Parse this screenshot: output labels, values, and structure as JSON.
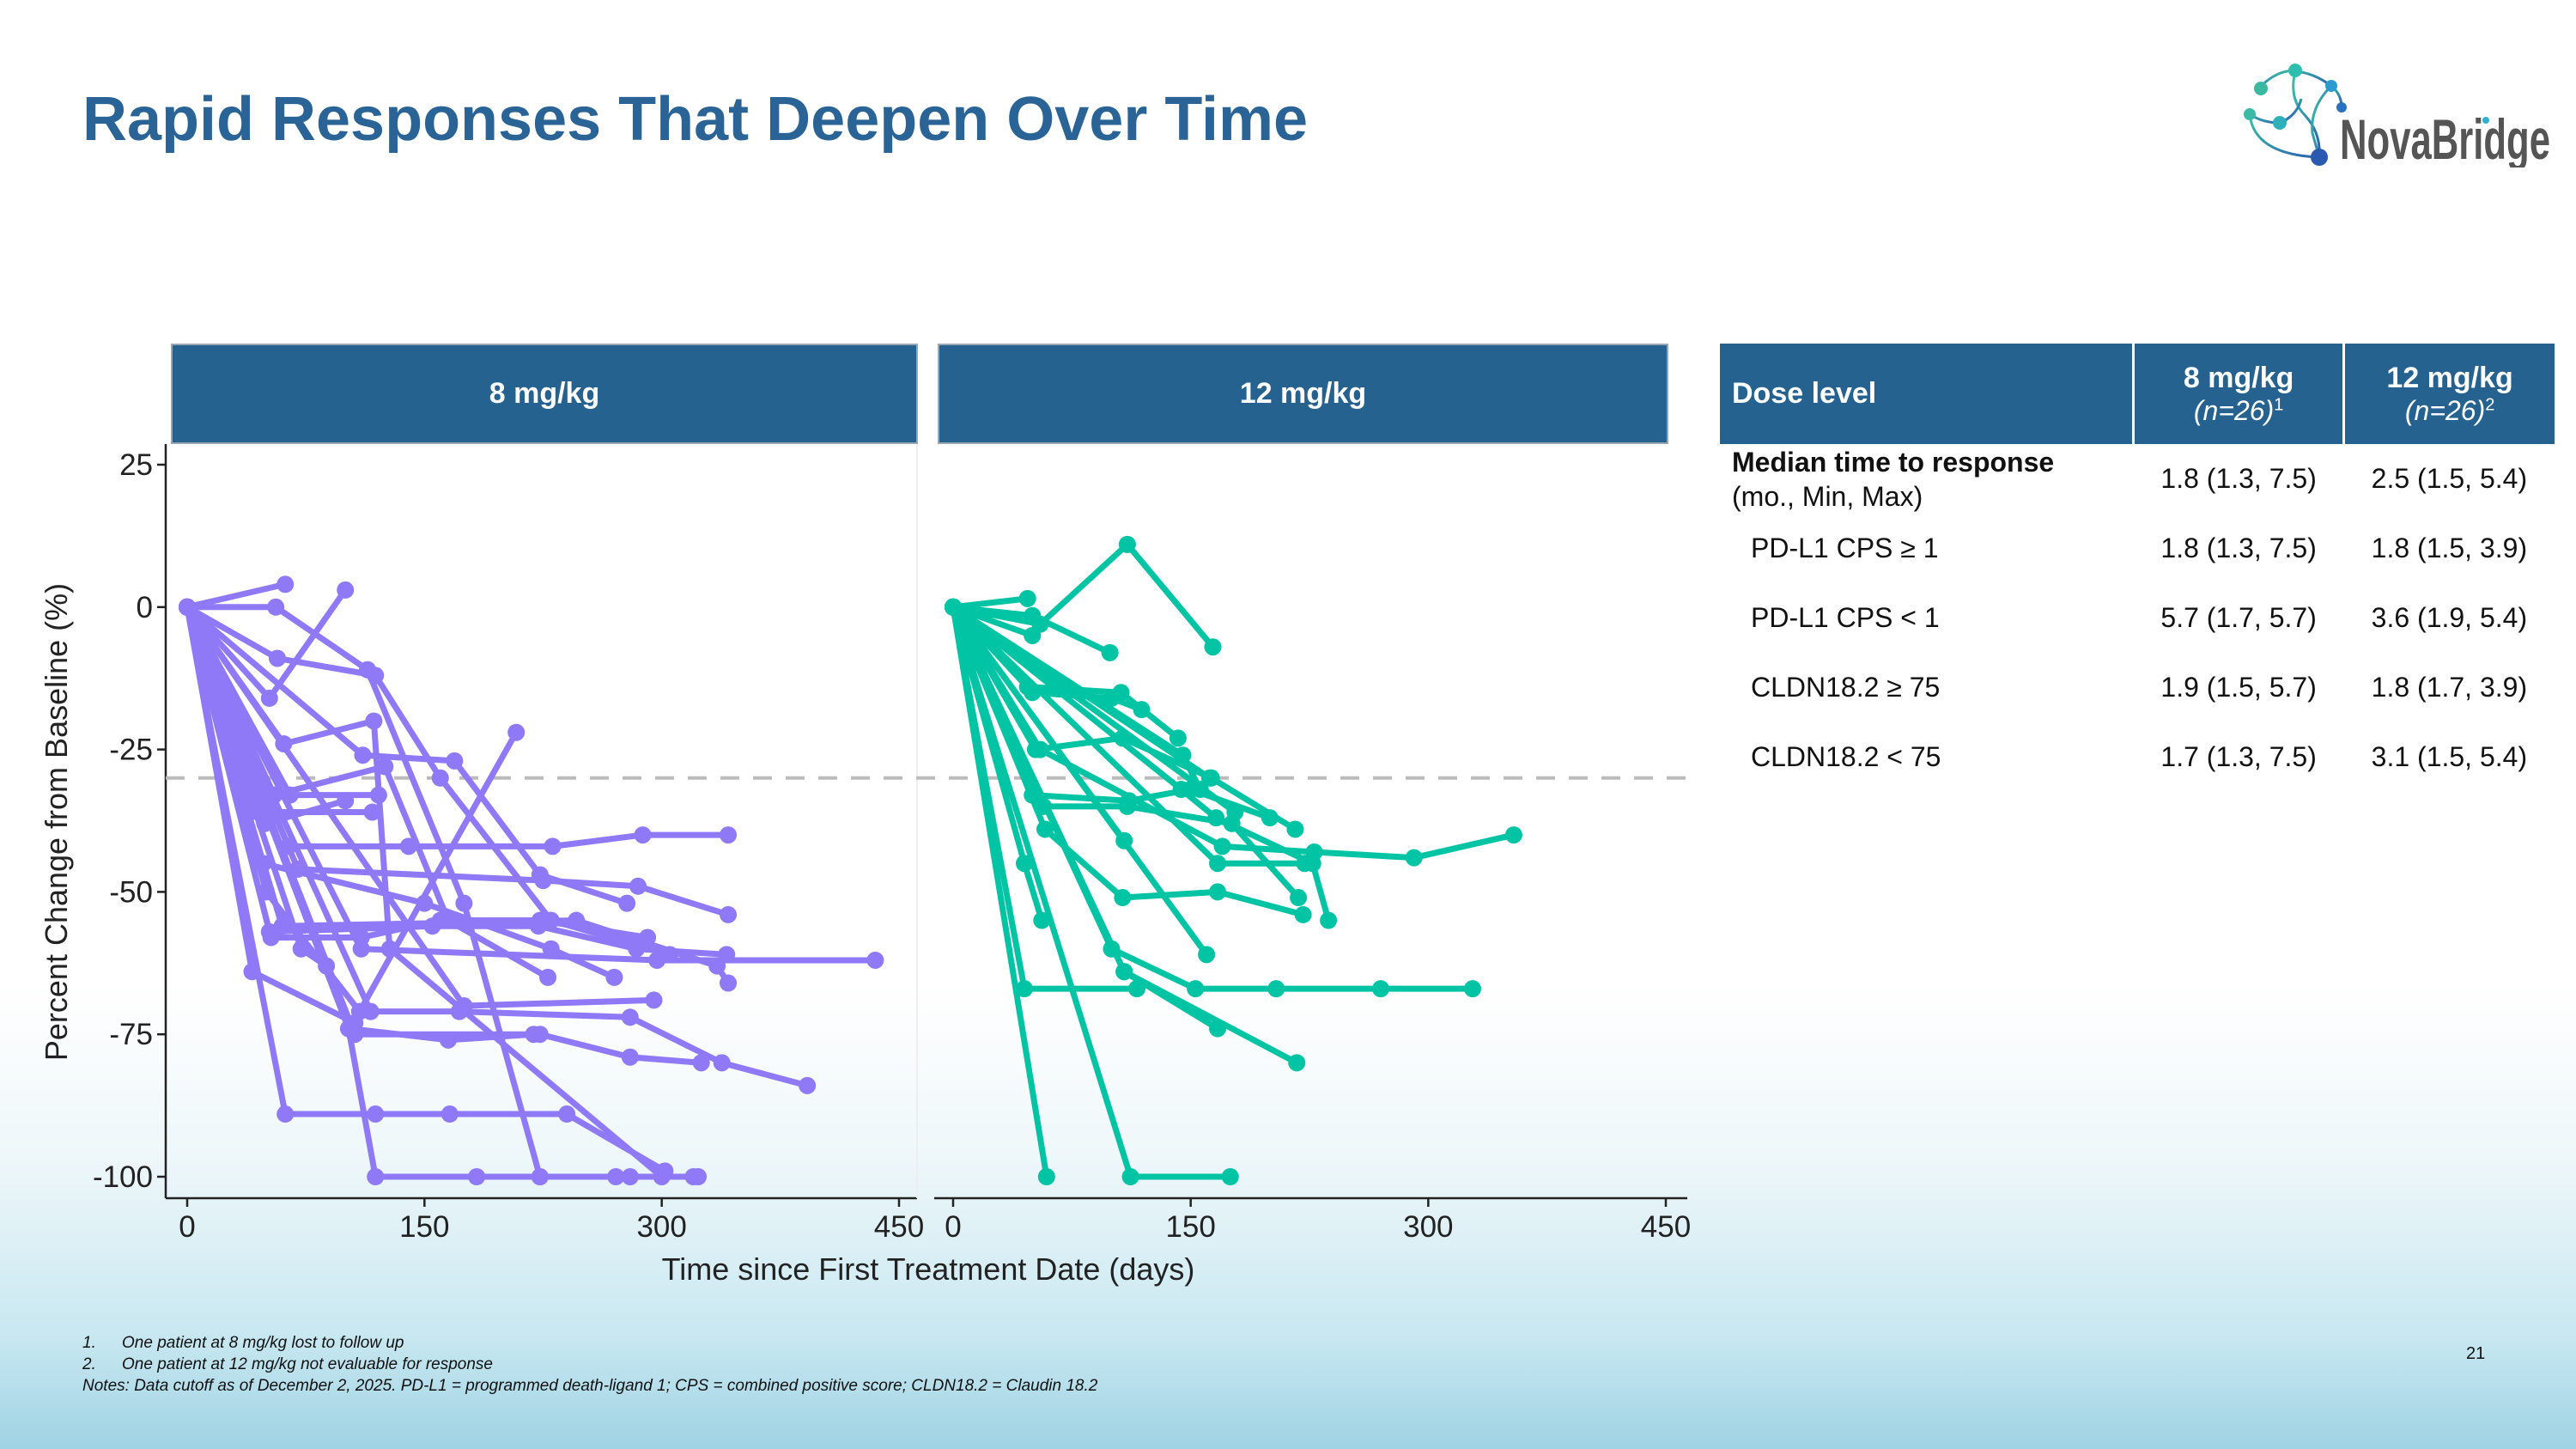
{
  "title": "Rapid Responses That Deepen Over Time",
  "logo": {
    "text": "NovaBridge"
  },
  "page_number": "21",
  "colors": {
    "title": "#2a6496",
    "header": "#26628f",
    "series_8": "#8f79f7",
    "series_12": "#00c4a3",
    "threshold": "#bbbbbb"
  },
  "chart_data": {
    "type": "line",
    "ylabel": "Percent Change from Baseline (%)",
    "xlabel": "Time since First Treatment Date (days)",
    "ylim": [
      -100,
      25
    ],
    "xlim": [
      0,
      450
    ],
    "yticks": [
      "25",
      "0",
      "-25",
      "-50",
      "-75",
      "-100"
    ],
    "xticks": [
      "0",
      "150",
      "300",
      "450"
    ],
    "reference_line": -30,
    "grid": false,
    "panels": [
      {
        "title": "8 mg/kg",
        "color": "#8f79f7",
        "series": [
          [
            [
              0,
              0
            ],
            [
              62,
              4
            ]
          ],
          [
            [
              0,
              0
            ],
            [
              56,
              0
            ],
            [
              114,
              -11
            ],
            [
              175,
              -52
            ],
            [
              223,
              -100
            ]
          ],
          [
            [
              0,
              0
            ],
            [
              52,
              -16
            ],
            [
              100,
              3
            ]
          ],
          [
            [
              0,
              0
            ],
            [
              57,
              -9
            ],
            [
              119,
              -12
            ],
            [
              160,
              -30
            ],
            [
              230,
              -55
            ],
            [
              305,
              -61
            ]
          ],
          [
            [
              0,
              0
            ],
            [
              61,
              -24
            ],
            [
              118,
              -20
            ],
            [
              128,
              -60
            ],
            [
              300,
              -100
            ],
            [
              320,
              -100
            ]
          ],
          [
            [
              0,
              0
            ],
            [
              111,
              -26
            ],
            [
              169,
              -27
            ],
            [
              223,
              -47
            ],
            [
              278,
              -52
            ]
          ],
          [
            [
              0,
              0
            ],
            [
              50,
              -50
            ],
            [
              109,
              -71
            ],
            [
              208,
              -22
            ]
          ],
          [
            [
              0,
              0
            ],
            [
              64,
              -42
            ],
            [
              140,
              -42
            ],
            [
              231,
              -42
            ],
            [
              288,
              -40
            ],
            [
              342,
              -40
            ]
          ],
          [
            [
              0,
              0
            ],
            [
              70,
              -46
            ],
            [
              225,
              -48
            ],
            [
              285,
              -49
            ],
            [
              342,
              -54
            ]
          ],
          [
            [
              0,
              0
            ],
            [
              60,
              -56
            ],
            [
              246,
              -55
            ],
            [
              335,
              -63
            ],
            [
              342,
              -66
            ]
          ],
          [
            [
              0,
              0
            ],
            [
              110,
              -60
            ],
            [
              297,
              -62
            ],
            [
              435,
              -62
            ]
          ],
          [
            [
              0,
              0
            ],
            [
              175,
              -70
            ],
            [
              295,
              -69
            ]
          ],
          [
            [
              0,
              0
            ],
            [
              116,
              -71
            ],
            [
              172,
              -71
            ],
            [
              280,
              -72
            ],
            [
              338,
              -80
            ],
            [
              392,
              -84
            ]
          ],
          [
            [
              0,
              0
            ],
            [
              106,
              -75
            ],
            [
              223,
              -75
            ],
            [
              280,
              -79
            ],
            [
              325,
              -80
            ]
          ],
          [
            [
              0,
              0
            ],
            [
              103,
              -74
            ],
            [
              165,
              -76
            ],
            [
              219,
              -75
            ]
          ],
          [
            [
              0,
              0
            ],
            [
              62,
              -89
            ],
            [
              119,
              -89
            ],
            [
              166,
              -89
            ],
            [
              240,
              -89
            ],
            [
              302,
              -99
            ]
          ],
          [
            [
              0,
              0
            ],
            [
              102,
              -74
            ],
            [
              119,
              -100
            ],
            [
              183,
              -100
            ],
            [
              223,
              -100
            ],
            [
              271,
              -100
            ],
            [
              280,
              -100
            ],
            [
              323,
              -100
            ]
          ],
          [
            [
              0,
              0
            ],
            [
              41,
              -64
            ],
            [
              106,
              -73
            ]
          ],
          [
            [
              0,
              0
            ],
            [
              53,
              -58
            ],
            [
              110,
              -58
            ],
            [
              160,
              -55
            ],
            [
              223,
              -55
            ],
            [
              291,
              -58
            ]
          ],
          [
            [
              0,
              0
            ],
            [
              52,
              -57
            ],
            [
              155,
              -56
            ],
            [
              222,
              -56
            ],
            [
              284,
              -60
            ],
            [
              341,
              -61
            ]
          ],
          [
            [
              0,
              0
            ],
            [
              65,
              -33
            ],
            [
              121,
              -33
            ]
          ],
          [
            [
              0,
              0
            ],
            [
              40,
              -36
            ],
            [
              117,
              -36
            ]
          ],
          [
            [
              0,
              0
            ],
            [
              55,
              -33
            ],
            [
              125,
              -28
            ],
            [
              165,
              -55
            ],
            [
              228,
              -65
            ]
          ],
          [
            [
              0,
              0
            ],
            [
              72,
              -60
            ],
            [
              88,
              -63
            ]
          ],
          [
            [
              0,
              0
            ],
            [
              48,
              -45
            ],
            [
              150,
              -52
            ],
            [
              230,
              -60
            ],
            [
              270,
              -65
            ]
          ],
          [
            [
              0,
              0
            ],
            [
              49,
              -38
            ],
            [
              100,
              -34
            ]
          ]
        ]
      },
      {
        "title": "12 mg/kg",
        "color": "#00c4a3",
        "series": [
          [
            [
              0,
              0
            ],
            [
              55,
              -3
            ],
            [
              110,
              11
            ],
            [
              164,
              -7
            ]
          ],
          [
            [
              0,
              0
            ],
            [
              47,
              1.5
            ]
          ],
          [
            [
              0,
              0
            ],
            [
              50,
              -1.5
            ],
            [
              99,
              -8
            ]
          ],
          [
            [
              0,
              0
            ],
            [
              50,
              -5
            ]
          ],
          [
            [
              0,
              0
            ],
            [
              47,
              -14
            ],
            [
              106,
              -15
            ],
            [
              142,
              -23
            ]
          ],
          [
            [
              0,
              0
            ],
            [
              50,
              -15
            ],
            [
              100,
              -16
            ],
            [
              119,
              -18
            ]
          ],
          [
            [
              0,
              0
            ],
            [
              52,
              -25
            ],
            [
              107,
              -23
            ],
            [
              163,
              -30
            ],
            [
              216,
              -39
            ]
          ],
          [
            [
              0,
              0
            ],
            [
              55,
              -25
            ],
            [
              170,
              -42
            ],
            [
              228,
              -43
            ],
            [
              291,
              -44
            ],
            [
              354,
              -40
            ]
          ],
          [
            [
              0,
              0
            ],
            [
              50,
              -33
            ],
            [
              111,
              -34
            ],
            [
              150,
              -32
            ],
            [
              200,
              -37
            ]
          ],
          [
            [
              0,
              0
            ],
            [
              58,
              -39
            ],
            [
              107,
              -51
            ],
            [
              167,
              -50
            ],
            [
              221,
              -54
            ]
          ],
          [
            [
              0,
              0
            ],
            [
              45,
              -45
            ],
            [
              56,
              -55
            ]
          ],
          [
            [
              0,
              0
            ],
            [
              45,
              -67
            ],
            [
              116,
              -67
            ]
          ],
          [
            [
              0,
              0
            ],
            [
              100,
              -60
            ],
            [
              153,
              -67
            ],
            [
              204,
              -67
            ],
            [
              270,
              -67
            ],
            [
              328,
              -67
            ]
          ],
          [
            [
              0,
              0
            ],
            [
              108,
              -64
            ],
            [
              167,
              -74
            ]
          ],
          [
            [
              0,
              0
            ],
            [
              108,
              -64
            ],
            [
              217,
              -80
            ]
          ],
          [
            [
              0,
              0
            ],
            [
              59,
              -100
            ]
          ],
          [
            [
              0,
              0
            ],
            [
              112,
              -100
            ],
            [
              175,
              -100
            ]
          ],
          [
            [
              0,
              0
            ],
            [
              160,
              -61
            ]
          ],
          [
            [
              0,
              0
            ],
            [
              108,
              -41
            ]
          ],
          [
            [
              0,
              0
            ],
            [
              144,
              -32
            ],
            [
              166,
              -37
            ],
            [
              227,
              -45
            ],
            [
              237,
              -55
            ]
          ],
          [
            [
              0,
              0
            ],
            [
              57,
              -35
            ],
            [
              110,
              -35
            ],
            [
              176,
              -38
            ],
            [
              218,
              -51
            ]
          ],
          [
            [
              0,
              0
            ],
            [
              162,
              -30
            ]
          ],
          [
            [
              0,
              0
            ],
            [
              178,
              -36
            ]
          ],
          [
            [
              0,
              0
            ],
            [
              145,
              -26
            ],
            [
              156,
              -32
            ]
          ],
          [
            [
              0,
              0
            ],
            [
              167,
              -45
            ],
            [
              222,
              -45
            ]
          ]
        ]
      }
    ]
  },
  "table": {
    "header": {
      "col0": "Dose level",
      "col1_dose": "8 mg/kg",
      "col1_n": "(n=26)",
      "col1_sup": "1",
      "col2_dose": "12 mg/kg",
      "col2_n": "(n=26)",
      "col2_sup": "2"
    },
    "first_row": {
      "label_bold": "Median time to response",
      "label_sub": "(mo., Min, Max)",
      "v1": "1.8 (1.3, 7.5)",
      "v2": "2.5 (1.5, 5.4)"
    },
    "rows": [
      {
        "label": "PD-L1 CPS ≥ 1",
        "v1": "1.8 (1.3, 7.5)",
        "v2": "1.8 (1.5, 3.9)"
      },
      {
        "label": "PD-L1 CPS < 1",
        "v1": "5.7 (1.7, 5.7)",
        "v2": "3.6 (1.9, 5.4)"
      },
      {
        "label": "CLDN18.2 ≥ 75",
        "v1": "1.9 (1.5, 5.7)",
        "v2": "1.8 (1.7, 3.9)"
      },
      {
        "label": "CLDN18.2 < 75",
        "v1": "1.7 (1.3, 7.5)",
        "v2": "3.1 (1.5, 5.4)"
      }
    ]
  },
  "footnotes": [
    {
      "num": "1.",
      "text": "One patient at 8 mg/kg lost to follow up"
    },
    {
      "num": "2.",
      "text": "One patient at 12 mg/kg not evaluable for response"
    }
  ],
  "notes": "Notes: Data cutoff as of December 2, 2025. PD-L1 = programmed death-ligand 1; CPS = combined positive score; CLDN18.2 = Claudin 18.2"
}
